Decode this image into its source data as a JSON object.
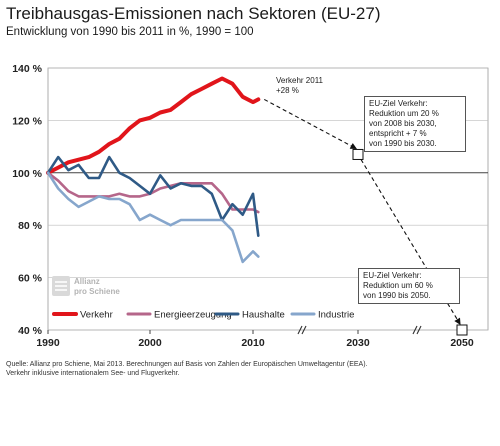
{
  "title": "Treibhausgas-Emissionen nach Sektoren (EU-27)",
  "subtitle": "Entwicklung von 1990 bis 2011 in %, 1990 = 100",
  "source_lines": [
    "Quelle: Allianz pro Schiene, Mai 2013. Berechnungen auf Basis von Zahlen der Europäischen Umweltagentur (EEA).",
    "Verkehr inklusive internationalem See- und Flugverkehr."
  ],
  "logo_text": [
    "Allianz",
    "pro Schiene"
  ],
  "annotations": {
    "verkehr_2011": [
      "Verkehr 2011",
      "+28 %"
    ],
    "ziel_2030": [
      "EU-Ziel Verkehr:",
      "Reduktion um 20 %",
      "von 2008 bis 2030,",
      "entspricht + 7 %",
      "von 1990 bis 2030."
    ],
    "ziel_2050": [
      "EU-Ziel Verkehr:",
      "Reduktion um 60 %",
      "von 1990 bis 2050."
    ]
  },
  "colors": {
    "Verkehr": "#e1151b",
    "Energieerzeugung": "#b5668a",
    "Haushalte": "#2f5a86",
    "Industrie": "#86a6cc"
  },
  "chart_data": {
    "type": "line",
    "title": "Treibhausgas-Emissionen nach Sektoren (EU-27)",
    "subtitle": "Entwicklung von 1990 bis 2011 in %, 1990 = 100",
    "ylim": [
      40,
      140
    ],
    "y_ticks": [
      "40 %",
      "60 %",
      "80 %",
      "100 %",
      "120 %",
      "140 %"
    ],
    "x_ticks": [
      "1990",
      "2000",
      "2010",
      "2030",
      "2050"
    ],
    "x": [
      1990,
      1991,
      1992,
      1993,
      1994,
      1995,
      1996,
      1997,
      1998,
      1999,
      2000,
      2001,
      2002,
      2003,
      2004,
      2005,
      2006,
      2007,
      2008,
      2009,
      2010,
      2011
    ],
    "series": [
      {
        "name": "Verkehr",
        "values": [
          100,
          102,
          104,
          105,
          106,
          108,
          111,
          113,
          117,
          120,
          121,
          123,
          124,
          127,
          130,
          132,
          134,
          136,
          134,
          129,
          127,
          128
        ]
      },
      {
        "name": "Energieerzeugung",
        "values": [
          100,
          97,
          93,
          91,
          91,
          91,
          91,
          92,
          91,
          91,
          92,
          94,
          95,
          96,
          96,
          96,
          96,
          92,
          86,
          86,
          86,
          85
        ]
      },
      {
        "name": "Haushalte",
        "values": [
          100,
          106,
          101,
          103,
          98,
          98,
          106,
          100,
          98,
          95,
          92,
          99,
          94,
          96,
          95,
          95,
          92,
          82,
          88,
          84,
          92,
          76
        ]
      },
      {
        "name": "Industrie",
        "values": [
          100,
          94,
          90,
          87,
          89,
          91,
          90,
          90,
          88,
          82,
          84,
          82,
          80,
          82,
          82,
          82,
          82,
          82,
          78,
          66,
          70,
          68
        ]
      }
    ],
    "targets": [
      {
        "name": "EU-Ziel Verkehr 2030",
        "x": 2030,
        "value": 107
      },
      {
        "name": "EU-Ziel Verkehr 2050",
        "x": 2050,
        "value": 40
      }
    ],
    "reference_line": 100,
    "legend_placement": "bottom",
    "grid": "horizontal"
  }
}
